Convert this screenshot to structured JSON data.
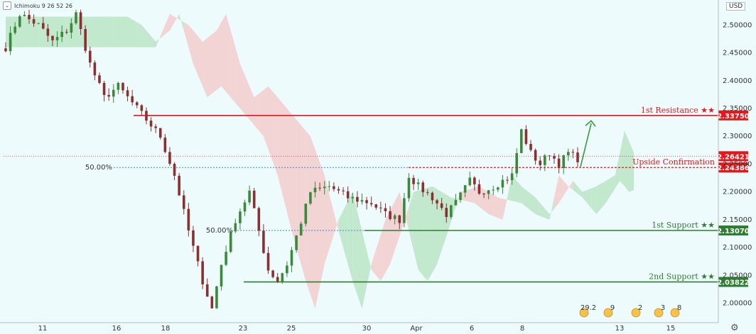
{
  "header": {
    "indicator": "Ichimoku 9 26 52 26",
    "collapse_icon": "chevron-down-icon"
  },
  "axis": {
    "currency": "USD",
    "settings_icon": "gear-icon"
  },
  "colors": {
    "bull": "#3a8a3a",
    "bear": "#8a3030",
    "resistance": "#e8161a",
    "support": "#2e7d32",
    "cloud": "#9fd9a8",
    "cloud_bear": "#f5b4b4",
    "arrow": "#3a9a3a",
    "fib": "#4a7fd8"
  },
  "chart_data": {
    "type": "candlestick",
    "ylim": [
      1.965,
      2.545
    ],
    "y_ticks": [
      {
        "value": 2.0,
        "label": "2.00000"
      },
      {
        "value": 2.05,
        "label": "2.05000"
      },
      {
        "value": 2.1,
        "label": "2.10000"
      },
      {
        "value": 2.15,
        "label": "2.15000"
      },
      {
        "value": 2.2,
        "label": "2.20000"
      },
      {
        "value": 2.25,
        "label": "2.25000"
      },
      {
        "value": 2.3,
        "label": "2.30000"
      },
      {
        "value": 2.35,
        "label": "2.35000"
      },
      {
        "value": 2.4,
        "label": "2.40000"
      },
      {
        "value": 2.45,
        "label": "2.45000"
      },
      {
        "value": 2.5,
        "label": "2.50000"
      }
    ],
    "x_ticks": [
      "11",
      "16",
      "18",
      "23",
      "25",
      "30",
      "Apr",
      "6",
      "8",
      "13",
      "15"
    ],
    "price_path": [
      [
        0,
        2.46
      ],
      [
        3,
        2.52
      ],
      [
        7,
        2.5
      ],
      [
        10,
        2.47
      ],
      [
        13,
        2.49
      ],
      [
        15,
        2.52
      ],
      [
        18,
        2.43
      ],
      [
        21,
        2.37
      ],
      [
        24,
        2.39
      ],
      [
        27,
        2.36
      ],
      [
        30,
        2.33
      ],
      [
        33,
        2.3
      ],
      [
        36,
        2.23
      ],
      [
        39,
        2.13
      ],
      [
        42,
        2.04
      ],
      [
        44,
        1.99
      ],
      [
        46,
        2.07
      ],
      [
        49,
        2.15
      ],
      [
        52,
        2.2
      ],
      [
        54,
        2.13
      ],
      [
        56,
        2.06
      ],
      [
        58,
        2.04
      ],
      [
        60,
        2.07
      ],
      [
        62,
        2.12
      ],
      [
        65,
        2.2
      ],
      [
        69,
        2.21
      ],
      [
        73,
        2.19
      ],
      [
        78,
        2.18
      ],
      [
        81,
        2.16
      ],
      [
        84,
        2.15
      ],
      [
        86,
        2.23
      ],
      [
        88,
        2.21
      ],
      [
        91,
        2.19
      ],
      [
        94,
        2.16
      ],
      [
        96,
        2.18
      ],
      [
        99,
        2.22
      ],
      [
        101,
        2.2
      ],
      [
        104,
        2.21
      ],
      [
        106,
        2.22
      ],
      [
        108,
        2.23
      ],
      [
        110,
        2.31
      ],
      [
        112,
        2.27
      ],
      [
        114,
        2.25
      ],
      [
        116,
        2.27
      ],
      [
        118,
        2.25
      ],
      [
        120,
        2.27
      ],
      [
        122,
        2.26
      ]
    ],
    "levels": [
      {
        "label": "1st Resistance ★★",
        "tag": "2.33750",
        "value": 2.3375,
        "kind": "resistance"
      },
      {
        "label": "Upside Confirmation",
        "tag": "2.24386",
        "value": 2.24386,
        "kind": "resistance"
      },
      {
        "label": "1st Support ★★",
        "tag": "2.13070",
        "value": 2.1307,
        "kind": "support"
      },
      {
        "label": "2nd Support ★★",
        "tag": "2.03822",
        "value": 2.03822,
        "kind": "support"
      }
    ],
    "current_price": {
      "value": 2.26421,
      "tag": "2.26421"
    },
    "fib": [
      {
        "label": "50.00%",
        "value": 2.24386
      },
      {
        "label": "50.00%",
        "value": 2.1307
      }
    ],
    "events": [
      "29.2",
      "9",
      "2",
      "3",
      "8"
    ]
  }
}
